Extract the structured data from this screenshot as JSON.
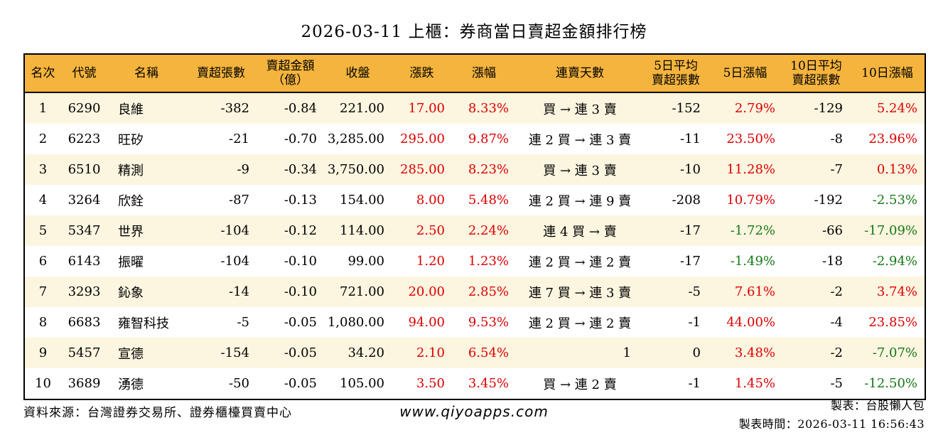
{
  "title": "2026-03-11 上櫃：券商當日賣超金額排行榜",
  "colors": {
    "red": "#dc0000",
    "green": "#157815",
    "header_bg": "#f5b43d",
    "row_alt_bg": "#fcf5e0"
  },
  "chart_data": {
    "type": "table",
    "title": "2026-03-11 上櫃：券商當日賣超金額排行榜",
    "columns": [
      "名次",
      "代號",
      "名稱",
      "賣超張數",
      "賣超金額\n（億）",
      "收盤",
      "漲跌",
      "漲幅",
      "連賣天數",
      "5日平均\n賣超張數",
      "5日漲幅",
      "10日平均\n賣超張數",
      "10日漲幅"
    ],
    "rows": [
      [
        "1",
        "6290",
        "良維",
        "-382",
        "-0.84",
        "221.00",
        "17.00",
        "8.33%",
        "買 → 連 3 賣",
        "-152",
        "2.79%",
        "-129",
        "5.24%"
      ],
      [
        "2",
        "6223",
        "旺矽",
        "-21",
        "-0.70",
        "3,285.00",
        "295.00",
        "9.87%",
        "連 2 買 → 連 3 賣",
        "-11",
        "23.50%",
        "-8",
        "23.96%"
      ],
      [
        "3",
        "6510",
        "精測",
        "-9",
        "-0.34",
        "3,750.00",
        "285.00",
        "8.23%",
        "買 → 連 3 賣",
        "-10",
        "11.28%",
        "-7",
        "0.13%"
      ],
      [
        "4",
        "3264",
        "欣銓",
        "-87",
        "-0.13",
        "154.00",
        "8.00",
        "5.48%",
        "連 2 買 → 連 9 賣",
        "-208",
        "10.79%",
        "-192",
        "-2.53%"
      ],
      [
        "5",
        "5347",
        "世界",
        "-104",
        "-0.12",
        "114.00",
        "2.50",
        "2.24%",
        "連 4 買 → 賣",
        "-17",
        "-1.72%",
        "-66",
        "-17.09%"
      ],
      [
        "6",
        "6143",
        "振曜",
        "-104",
        "-0.10",
        "99.00",
        "1.20",
        "1.23%",
        "連 2 買 → 連 2 賣",
        "-17",
        "-1.49%",
        "-18",
        "-2.94%"
      ],
      [
        "7",
        "3293",
        "鈊象",
        "-14",
        "-0.10",
        "721.00",
        "20.00",
        "2.85%",
        "連 7 買 → 連 3 賣",
        "-5",
        "7.61%",
        "-2",
        "3.74%"
      ],
      [
        "8",
        "6683",
        "雍智科技",
        "-5",
        "-0.05",
        "1,080.00",
        "94.00",
        "9.53%",
        "連 2 買 → 連 2 賣",
        "-1",
        "44.00%",
        "-4",
        "23.85%"
      ],
      [
        "9",
        "5457",
        "宣德",
        "-154",
        "-0.05",
        "34.20",
        "2.10",
        "6.54%",
        "1",
        "0",
        "3.48%",
        "-2",
        "-7.07%"
      ],
      [
        "10",
        "3689",
        "湧德",
        "-50",
        "-0.05",
        "105.00",
        "3.50",
        "3.45%",
        "買 → 連 2 賣",
        "-1",
        "1.45%",
        "-5",
        "-12.50%"
      ]
    ]
  },
  "footer": {
    "source": "資料來源：台灣證券交易所、證券櫃檯買賣中心",
    "website": "www.qiyoapps.com",
    "maker": "製表：台股懶人包",
    "timestamp": "製表時間：2026-03-11 16:56:43"
  }
}
